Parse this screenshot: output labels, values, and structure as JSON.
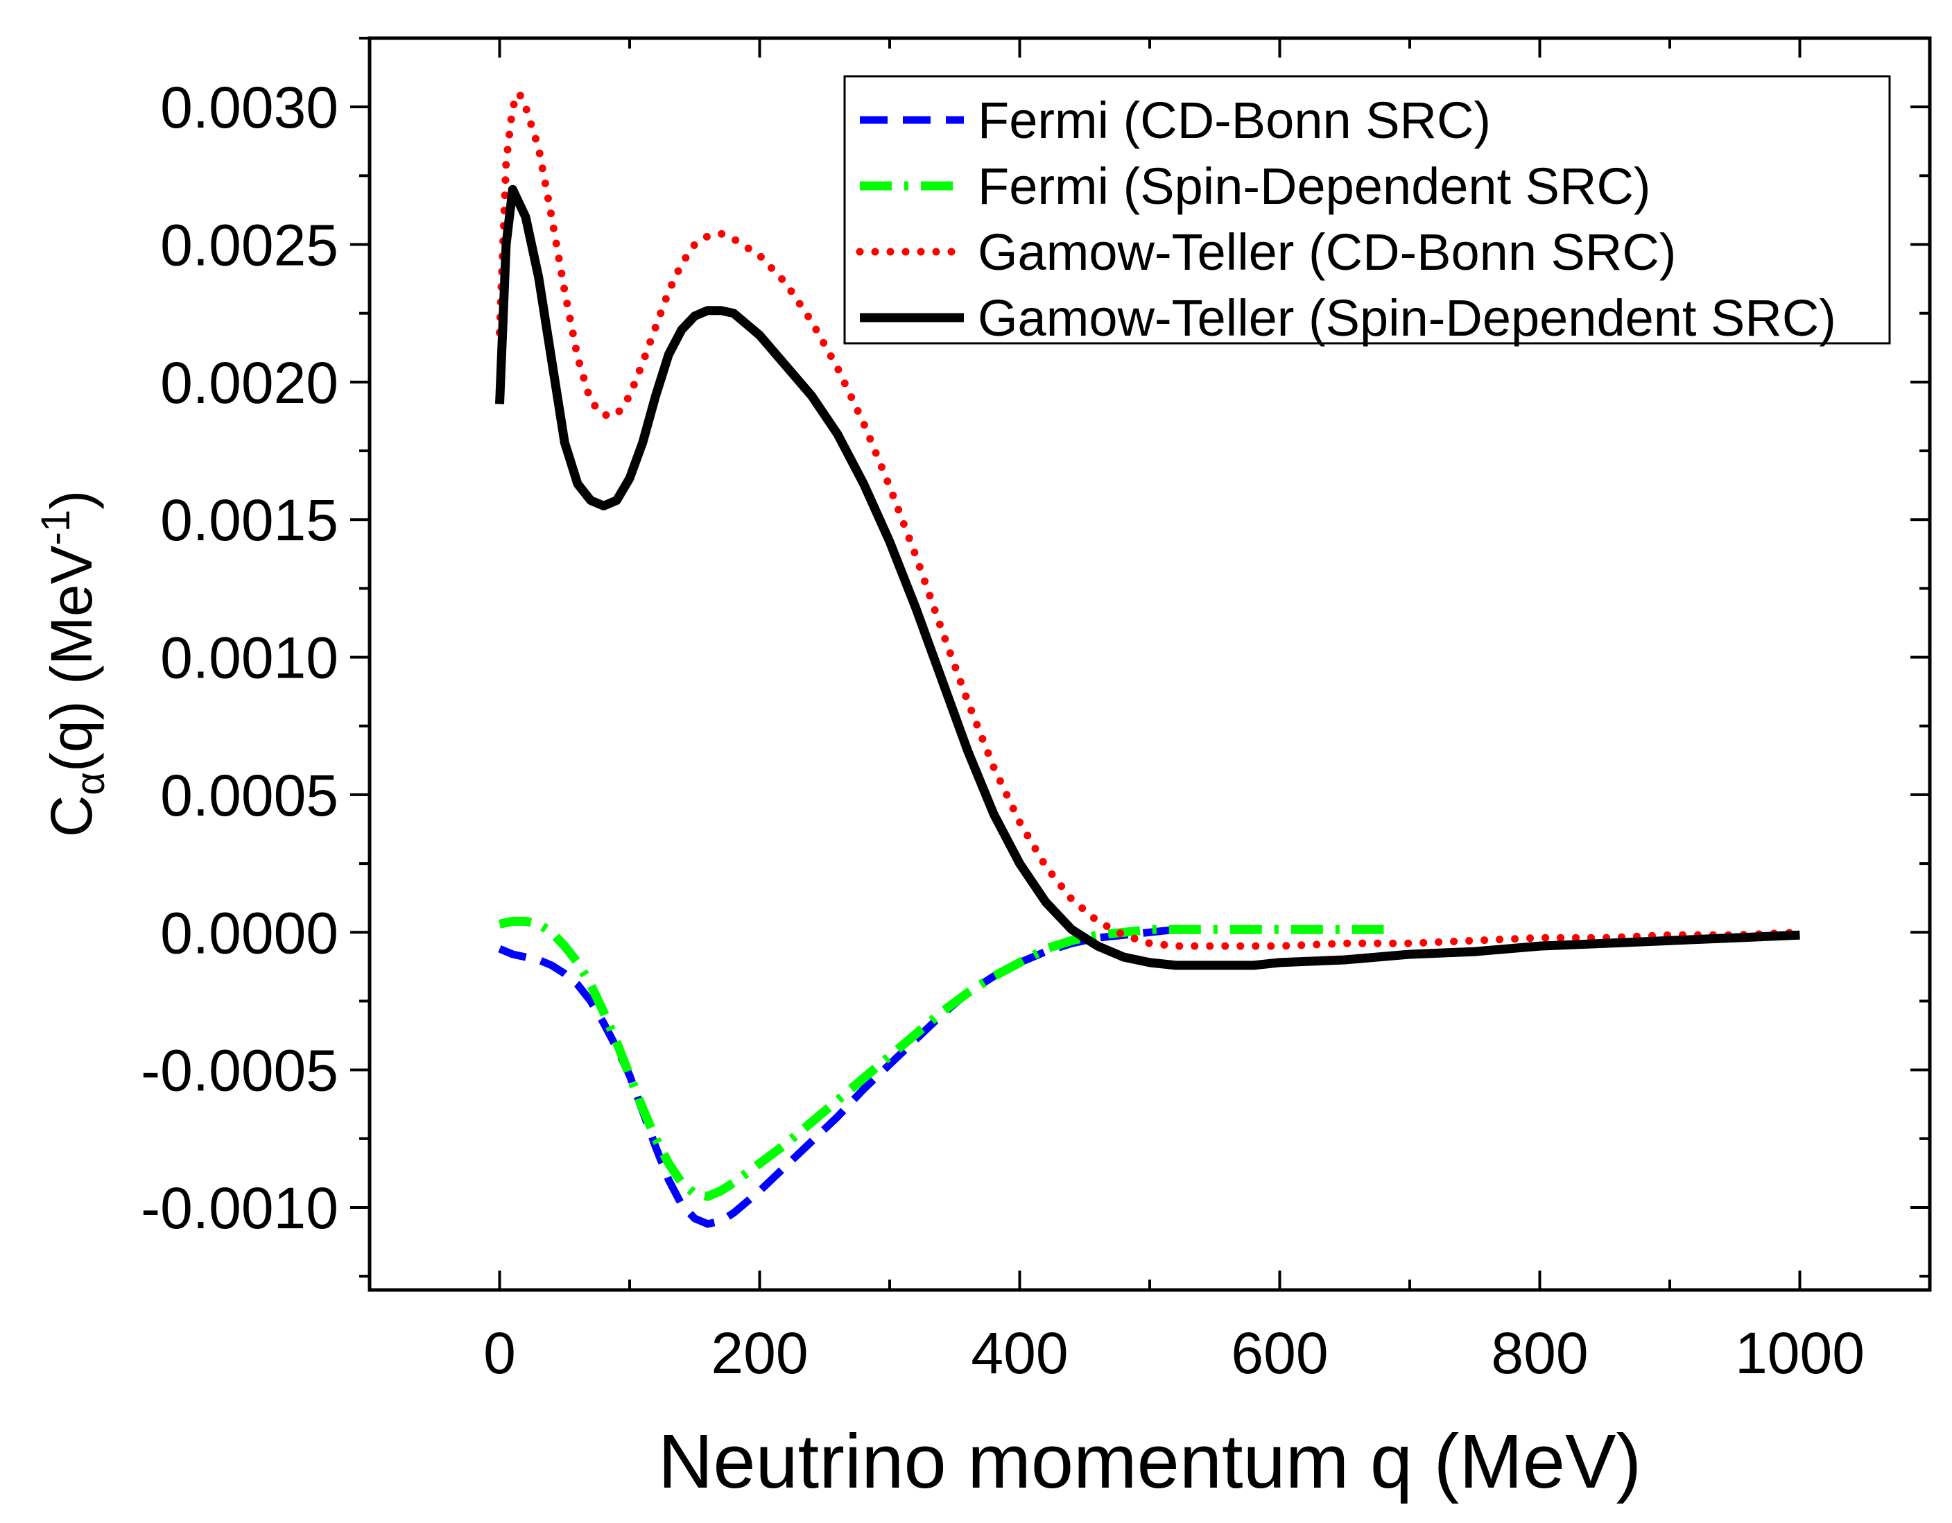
{
  "chart_data": {
    "type": "line",
    "title": "",
    "xlabel": "Neutrino momentum q (MeV)",
    "ylabel": {
      "base": "C",
      "subscript": "α",
      "middle": "(q) (MeV",
      "superscript": "-1",
      "end": ")"
    },
    "xlim": [
      -100,
      1100
    ],
    "ylim": [
      -0.0013,
      0.00325
    ],
    "x_ticks": [
      0,
      200,
      400,
      600,
      800,
      1000
    ],
    "x_tick_labels": [
      "0",
      "200",
      "400",
      "600",
      "800",
      "1000"
    ],
    "x_minor_ticks": [
      -100,
      100,
      300,
      500,
      700,
      900,
      1100
    ],
    "y_ticks": [
      -0.001,
      -0.0005,
      0.0,
      0.0005,
      0.001,
      0.0015,
      0.002,
      0.0025,
      0.003
    ],
    "y_tick_labels": [
      "-0.0010",
      "-0.0005",
      "0.0000",
      "0.0005",
      "0.0010",
      "0.0015",
      "0.0020",
      "0.0025",
      "0.0030"
    ],
    "y_minor_ticks": [
      -0.00125,
      -0.00075,
      -0.00025,
      0.00025,
      0.00075,
      0.00125,
      0.00175,
      0.00225,
      0.00275,
      0.00325
    ],
    "grid": false,
    "legend_position": "top-right",
    "series": [
      {
        "name": "Fermi (CD-Bonn SRC)",
        "color": "#0000ff",
        "style": "dashed",
        "x": [
          0,
          10,
          20,
          30,
          40,
          50,
          60,
          70,
          80,
          90,
          100,
          110,
          120,
          130,
          140,
          150,
          160,
          170,
          180,
          200,
          220,
          240,
          260,
          280,
          300,
          320,
          340,
          360,
          380,
          400,
          420,
          440,
          460,
          480,
          500,
          520
        ],
        "values": [
          -6e-05,
          -8e-05,
          -9e-05,
          -0.0001,
          -0.00012,
          -0.00015,
          -0.00019,
          -0.00025,
          -0.00033,
          -0.00042,
          -0.00052,
          -0.00065,
          -0.00078,
          -0.0009,
          -0.00099,
          -0.00104,
          -0.00106,
          -0.00105,
          -0.00102,
          -0.00094,
          -0.00085,
          -0.00076,
          -0.00067,
          -0.00057,
          -0.00048,
          -0.00039,
          -0.0003,
          -0.00022,
          -0.00016,
          -0.00011,
          -7e-05,
          -4e-05,
          -2e-05,
          -1e-05,
          0.0,
          1e-05
        ]
      },
      {
        "name": "Fermi (Spin-Dependent SRC)",
        "color": "#00ff00",
        "style": "dash-dot",
        "x": [
          0,
          10,
          20,
          30,
          40,
          50,
          60,
          70,
          80,
          90,
          100,
          110,
          120,
          130,
          140,
          150,
          160,
          170,
          180,
          200,
          220,
          240,
          260,
          280,
          300,
          320,
          340,
          360,
          380,
          400,
          420,
          440,
          460,
          480,
          500,
          520,
          540,
          560,
          580,
          600,
          620,
          640,
          660,
          680
        ],
        "values": [
          3e-05,
          4e-05,
          4e-05,
          3e-05,
          0.0,
          -5e-05,
          -0.00011,
          -0.00019,
          -0.00029,
          -0.0004,
          -0.00052,
          -0.00064,
          -0.00075,
          -0.00084,
          -0.00091,
          -0.00095,
          -0.00096,
          -0.00094,
          -0.00091,
          -0.00084,
          -0.00077,
          -0.00069,
          -0.00061,
          -0.00053,
          -0.00045,
          -0.00037,
          -0.00029,
          -0.00022,
          -0.00016,
          -0.00011,
          -6e-05,
          -3e-05,
          -1e-05,
          0.0,
          1e-05,
          1e-05,
          1e-05,
          1e-05,
          1e-05,
          1e-05,
          1e-05,
          1e-05,
          1e-05,
          1e-05
        ]
      },
      {
        "name": "Gamow-Teller (CD-Bonn SRC)",
        "color": "#ff0000",
        "style": "dotted",
        "x": [
          0,
          5,
          10,
          15,
          20,
          30,
          40,
          50,
          60,
          70,
          80,
          90,
          100,
          110,
          120,
          130,
          140,
          150,
          160,
          170,
          180,
          200,
          220,
          240,
          260,
          280,
          300,
          320,
          340,
          360,
          380,
          400,
          420,
          440,
          460,
          480,
          500,
          520,
          540,
          560,
          580,
          600,
          650,
          700,
          750,
          800,
          850,
          900,
          950,
          1000
        ],
        "values": [
          0.00218,
          0.0028,
          0.003,
          0.00305,
          0.003,
          0.00285,
          0.0026,
          0.00233,
          0.00209,
          0.00193,
          0.00188,
          0.00188,
          0.00195,
          0.00207,
          0.0022,
          0.00233,
          0.00243,
          0.0025,
          0.00253,
          0.00254,
          0.00252,
          0.00246,
          0.00236,
          0.00222,
          0.00205,
          0.00185,
          0.00162,
          0.00137,
          0.0011,
          0.00084,
          0.0006,
          0.0004,
          0.00024,
          0.00012,
          4e-05,
          -1e-05,
          -4e-05,
          -5e-05,
          -5e-05,
          -5e-05,
          -5e-05,
          -5e-05,
          -4e-05,
          -4e-05,
          -3e-05,
          -2e-05,
          -2e-05,
          -1e-05,
          -1e-05,
          0.0
        ]
      },
      {
        "name": "Gamow-Teller (Spin-Dependent SRC)",
        "color": "#000000",
        "style": "solid",
        "x": [
          0,
          5,
          10,
          20,
          30,
          40,
          50,
          60,
          70,
          80,
          90,
          100,
          110,
          120,
          130,
          140,
          150,
          160,
          170,
          180,
          200,
          220,
          240,
          260,
          280,
          300,
          320,
          340,
          360,
          380,
          400,
          420,
          440,
          460,
          480,
          500,
          520,
          540,
          560,
          580,
          600,
          650,
          700,
          750,
          800,
          850,
          900,
          950,
          1000
        ],
        "values": [
          0.00192,
          0.0025,
          0.0027,
          0.0026,
          0.00238,
          0.00208,
          0.00178,
          0.00163,
          0.00157,
          0.00155,
          0.00157,
          0.00165,
          0.00178,
          0.00195,
          0.0021,
          0.00219,
          0.00224,
          0.00226,
          0.00226,
          0.00225,
          0.00217,
          0.00206,
          0.00195,
          0.00181,
          0.00163,
          0.00142,
          0.00118,
          0.00092,
          0.00066,
          0.00043,
          0.00025,
          0.00011,
          1e-05,
          -5e-05,
          -9e-05,
          -0.00011,
          -0.00012,
          -0.00012,
          -0.00012,
          -0.00012,
          -0.00011,
          -0.0001,
          -8e-05,
          -7e-05,
          -5e-05,
          -4e-05,
          -3e-05,
          -2e-05,
          -1e-05
        ]
      }
    ]
  }
}
